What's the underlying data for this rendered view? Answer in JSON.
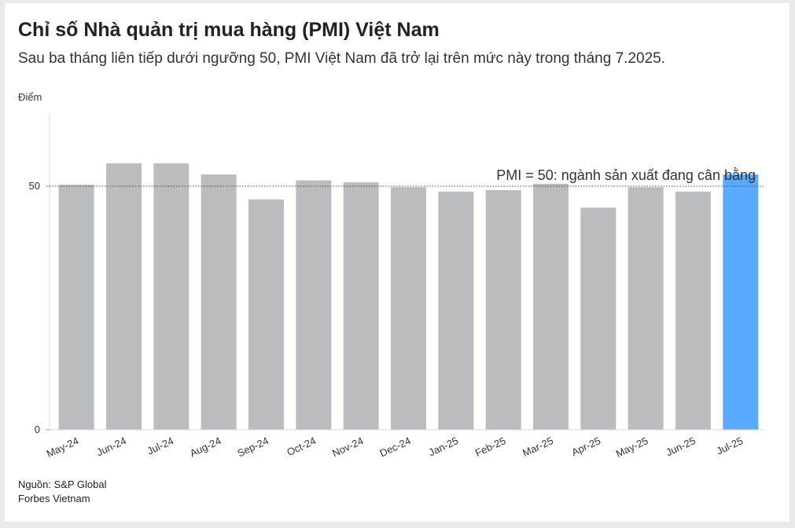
{
  "header": {
    "title": "Chỉ số Nhà quản trị mua hàng (PMI) Việt Nam",
    "subtitle": "Sau ba tháng liên tiếp dưới ngưỡng 50, PMI Việt Nam đã trở lại trên mức này trong tháng 7.2025."
  },
  "footer": {
    "source": "Nguồn: S&P Global",
    "publisher": "Forbes Vietnam"
  },
  "chart_data": {
    "type": "bar",
    "ylabel": "Điểm",
    "ylim": [
      0,
      65
    ],
    "yticks": [
      0,
      50
    ],
    "categories": [
      "May-24",
      "Jun-24",
      "Jul-24",
      "Aug-24",
      "Sep-24",
      "Oct-24",
      "Nov-24",
      "Dec-24",
      "Jan-25",
      "Feb-25",
      "Mar-25",
      "Apr-25",
      "May-25",
      "Jun-25",
      "Jul-25"
    ],
    "values": [
      50.3,
      54.7,
      54.7,
      52.4,
      47.3,
      51.2,
      50.8,
      49.8,
      48.9,
      49.2,
      50.5,
      45.6,
      49.8,
      48.9,
      52.4
    ],
    "highlight_index": 14,
    "colors": {
      "bar": "#bbbcbe",
      "highlight": "#5aabff",
      "reference_line": "#444444"
    },
    "reference_line": {
      "value": 50,
      "label": "PMI = 50: ngành sản xuất đang cân bằng",
      "style": "dotted"
    },
    "grid": false,
    "legend": "none"
  }
}
